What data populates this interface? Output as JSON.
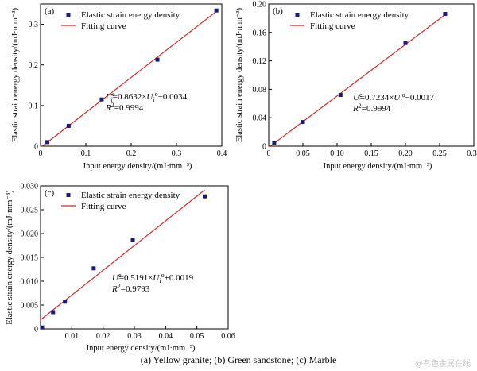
{
  "chart_data": [
    {
      "panel": "(a)",
      "type": "scatter",
      "xlabel": "Input energy density/(mJ·mm⁻³)",
      "ylabel": "Elastic strain energy density/(mJ·mm⁻³)",
      "xlim": [
        0,
        0.4
      ],
      "ylim": [
        0,
        0.35
      ],
      "xticks": [
        "0",
        "0.1",
        "0.2",
        "0.3",
        "0.4"
      ],
      "yticks": [
        "0",
        "0.1",
        "0.2",
        "0.3"
      ],
      "series": [
        {
          "name": "Elastic strain energy density",
          "points": [
            [
              0.015,
              0.01
            ],
            [
              0.062,
              0.05
            ],
            [
              0.135,
              0.115
            ],
            [
              0.258,
              0.213
            ],
            [
              0.388,
              0.334
            ]
          ]
        }
      ],
      "fit": {
        "name": "Fitting curve",
        "slope": 0.8632,
        "intercept": -0.0034,
        "x_range": [
          0.004,
          0.388
        ]
      },
      "equation": "=0.8632×",
      "equation_tail": "−0.0034",
      "r2": "=0.9994",
      "legend": "top-left"
    },
    {
      "panel": "(b)",
      "type": "scatter",
      "xlabel": "Input energy density/(mJ·mm⁻³)",
      "ylabel": "Elastic strain energy density/(mJ·mm⁻³)",
      "xlim": [
        0,
        0.3
      ],
      "ylim": [
        0,
        0.2
      ],
      "xticks": [
        "0",
        "0.05",
        "0.10",
        "0.15",
        "0.20",
        "0.25",
        "0.30"
      ],
      "yticks": [
        "0",
        "0.04",
        "0.08",
        "0.12",
        "0.16",
        "0.20"
      ],
      "series": [
        {
          "name": "Elastic strain energy density",
          "points": [
            [
              0.008,
              0.005
            ],
            [
              0.05,
              0.034
            ],
            [
              0.105,
              0.072
            ],
            [
              0.2,
              0.145
            ],
            [
              0.258,
              0.186
            ]
          ]
        }
      ],
      "fit": {
        "name": "Fitting curve",
        "slope": 0.7234,
        "intercept": -0.0017,
        "x_range": [
          0.003,
          0.258
        ]
      },
      "equation": "=0.7234×",
      "equation_tail": "−0.0017",
      "r2": "=0.9994",
      "legend": "top-left"
    },
    {
      "panel": "(c)",
      "type": "scatter",
      "xlabel": "Input energy density/(mJ·mm⁻³)",
      "ylabel": "Elastic strain energy density/(mJ·mm⁻³)",
      "xlim": [
        0,
        0.06
      ],
      "ylim": [
        0,
        0.03
      ],
      "xticks": [
        "0.01",
        "0.02",
        "0.03",
        "0.04",
        "0.05",
        "0.06"
      ],
      "yticks": [
        "0",
        "0.005",
        "0.010",
        "0.015",
        "0.020",
        "0.025",
        "0.030"
      ],
      "series": [
        {
          "name": "Elastic strain energy density",
          "points": [
            [
              0.0005,
              0.0003
            ],
            [
              0.004,
              0.0035
            ],
            [
              0.0078,
              0.0057
            ],
            [
              0.017,
              0.0127
            ],
            [
              0.0295,
              0.0187
            ],
            [
              0.0525,
              0.0278
            ]
          ]
        }
      ],
      "fit": {
        "name": "Fitting curve",
        "slope": 0.5191,
        "intercept": 0.0019,
        "x_range": [
          0,
          0.0525
        ]
      },
      "equation": "=0.5191×",
      "equation_tail": "+0.0019",
      "r2": "=0.9793",
      "legend": "top-left"
    }
  ],
  "symbols": {
    "U": "U",
    "sub": "i",
    "sup_e": "e",
    "sup_o": "o",
    "r2_label": "R",
    "r2_sup": "2"
  },
  "caption": "(a)   Yellow   granite; (b) Green sandstone; (c) Marble",
  "watermark": "@有色金属在线",
  "colors": {
    "points": "#1a1a7e",
    "fit": "#cc2a2a"
  }
}
